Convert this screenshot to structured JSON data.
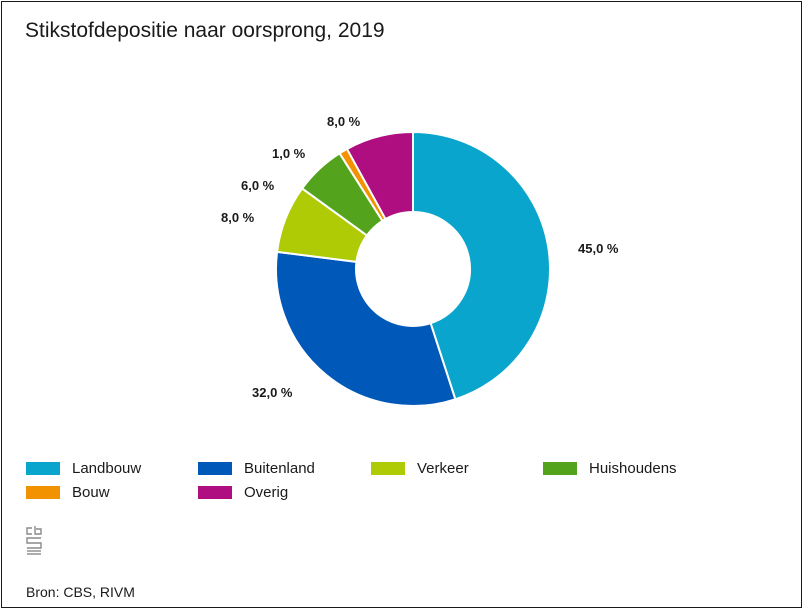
{
  "chart_data": {
    "type": "pie",
    "variant": "donut",
    "title": "Stikstofdepositie naar oorsprong, 2019",
    "categories": [
      "Landbouw",
      "Buitenland",
      "Verkeer",
      "Huishoudens",
      "Bouw",
      "Overig"
    ],
    "values": [
      45.0,
      32.0,
      8.0,
      6.0,
      1.0,
      8.0
    ],
    "labels": [
      "45,0 %",
      "32,0 %",
      "8,0 %",
      "6,0 %",
      "1,0 %",
      "8,0 %"
    ],
    "colors": [
      "#0aa5cc",
      "#0058b8",
      "#afcb05",
      "#53a31d",
      "#f39200",
      "#af0e80"
    ],
    "legend_position": "bottom"
  },
  "source": {
    "text": "Bron: CBS, RIVM",
    "logo_icon": "cbs-logo-icon"
  }
}
